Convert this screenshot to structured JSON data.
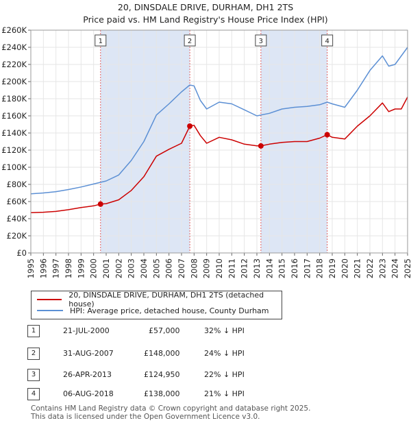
{
  "title": "20, DINSDALE DRIVE, DURHAM, DH1 2TS",
  "subtitle": "Price paid vs. HM Land Registry's House Price Index (HPI)",
  "colors": {
    "property": "#cc0000",
    "hpi": "#5b8fd4",
    "band": "#dde6f5",
    "marker_line": "#e06060",
    "grid": "#e6e6e6"
  },
  "chart_data": {
    "type": "line",
    "xlim": [
      1995,
      2025
    ],
    "ylim": [
      0,
      260000
    ],
    "y_ticks": [
      0,
      20000,
      40000,
      60000,
      80000,
      100000,
      120000,
      140000,
      160000,
      180000,
      200000,
      220000,
      240000,
      260000
    ],
    "y_tick_labels": [
      "£0",
      "£20K",
      "£40K",
      "£60K",
      "£80K",
      "£100K",
      "£120K",
      "£140K",
      "£160K",
      "£180K",
      "£200K",
      "£220K",
      "£240K",
      "£260K"
    ],
    "x_ticks": [
      1995,
      1996,
      1997,
      1998,
      1999,
      2000,
      2001,
      2002,
      2003,
      2004,
      2005,
      2006,
      2007,
      2008,
      2009,
      2010,
      2011,
      2012,
      2013,
      2014,
      2015,
      2016,
      2017,
      2018,
      2019,
      2020,
      2021,
      2022,
      2023,
      2024,
      2025
    ],
    "x_tick_labels": [
      "1995",
      "1996",
      "1997",
      "1998",
      "1999",
      "2000",
      "2001",
      "2002",
      "2003",
      "2004",
      "2005",
      "2006",
      "2007",
      "2008",
      "2009",
      "2010",
      "2011",
      "2012",
      "2013",
      "2014",
      "2015",
      "2016",
      "2017",
      "2018",
      "2019",
      "2020",
      "2021",
      "2022",
      "2023",
      "2024",
      "2025"
    ],
    "shaded_ranges": [
      [
        2000.55,
        2007.66
      ],
      [
        2013.32,
        2018.6
      ]
    ],
    "sale_markers": [
      {
        "label": "1",
        "x": 2000.55,
        "price": 57000
      },
      {
        "label": "2",
        "x": 2007.66,
        "price": 148000
      },
      {
        "label": "3",
        "x": 2013.32,
        "price": 124950
      },
      {
        "label": "4",
        "x": 2018.6,
        "price": 138000
      }
    ],
    "series": [
      {
        "name": "20, DINSDALE DRIVE, DURHAM, DH1 2TS (detached house)",
        "x": [
          1995,
          1996,
          1997,
          1998,
          1999,
          2000,
          2000.55,
          2001,
          2002,
          2003,
          2004,
          2005,
          2006,
          2007,
          2007.66,
          2008,
          2008.5,
          2009,
          2010,
          2011,
          2012,
          2013,
          2013.32,
          2014,
          2015,
          2016,
          2017,
          2018,
          2018.6,
          2019,
          2020,
          2021,
          2022,
          2023,
          2023.5,
          2024,
          2024.5,
          2025
        ],
        "values": [
          47000,
          47500,
          48500,
          50500,
          53000,
          55000,
          57000,
          57500,
          62000,
          73000,
          89000,
          113000,
          121000,
          128000,
          148000,
          149000,
          137000,
          128000,
          135000,
          132000,
          127000,
          125000,
          124950,
          127000,
          129000,
          130000,
          130000,
          134000,
          138000,
          135000,
          133000,
          148000,
          160000,
          175000,
          165000,
          168000,
          168000,
          182000
        ]
      },
      {
        "name": "HPI: Average price, detached house, County Durham",
        "x": [
          1995,
          1996,
          1997,
          1998,
          1999,
          2000,
          2001,
          2002,
          2003,
          2004,
          2005,
          2006,
          2007,
          2007.66,
          2008,
          2008.5,
          2009,
          2010,
          2011,
          2012,
          2013,
          2014,
          2015,
          2016,
          2017,
          2018,
          2018.6,
          2019,
          2020,
          2021,
          2022,
          2023,
          2023.5,
          2024,
          2025
        ],
        "values": [
          69000,
          70000,
          71500,
          74000,
          77000,
          80500,
          84000,
          91000,
          108000,
          130000,
          161000,
          174000,
          188000,
          196000,
          195000,
          178000,
          168000,
          176000,
          174000,
          167000,
          160000,
          163000,
          168000,
          170000,
          171000,
          173000,
          176000,
          174000,
          170000,
          190000,
          213000,
          230000,
          218000,
          220000,
          240000
        ]
      }
    ]
  },
  "legend": {
    "property_label": "20, DINSDALE DRIVE, DURHAM, DH1 2TS (detached house)",
    "hpi_label": "HPI: Average price, detached house, County Durham"
  },
  "sales": [
    {
      "num": "1",
      "date": "21-JUL-2000",
      "price": "£57,000",
      "hpi": "32% ↓ HPI"
    },
    {
      "num": "2",
      "date": "31-AUG-2007",
      "price": "£148,000",
      "hpi": "24% ↓ HPI"
    },
    {
      "num": "3",
      "date": "26-APR-2013",
      "price": "£124,950",
      "hpi": "22% ↓ HPI"
    },
    {
      "num": "4",
      "date": "06-AUG-2018",
      "price": "£138,000",
      "hpi": "21% ↓ HPI"
    }
  ],
  "footer": {
    "line1": "Contains HM Land Registry data © Crown copyright and database right 2025.",
    "line2": "This data is licensed under the Open Government Licence v3.0."
  }
}
